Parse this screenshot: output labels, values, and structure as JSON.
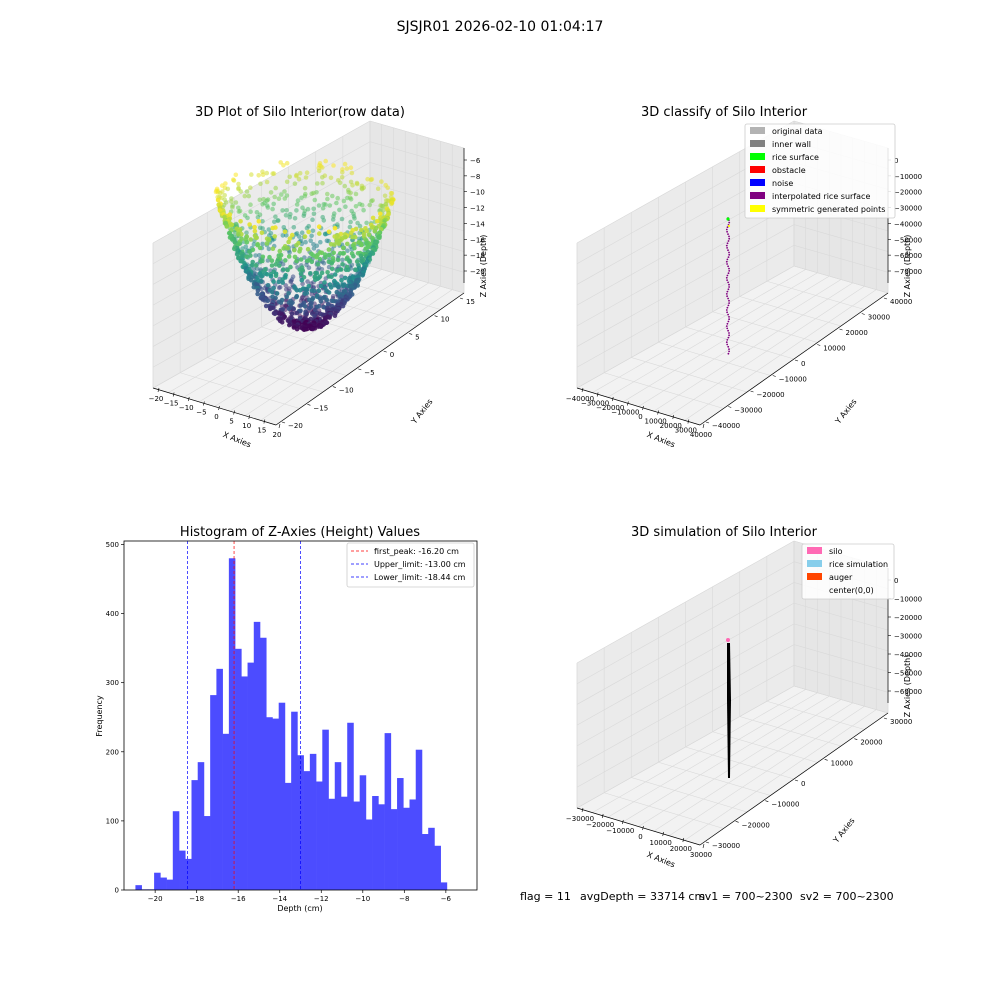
{
  "figure": {
    "suptitle": "SJSJR01 2026-02-10 01:04:17",
    "bottom": {
      "flag": "flag = 11",
      "avg": "avgDepth = 33714 cm",
      "sv1": "sv1 = 700~2300",
      "sv2": "sv2 = 700~2300"
    }
  },
  "colors": {
    "hist_bar": "#4c4cff",
    "first_peak": "#ff0000",
    "limit_lines": "#0000ff",
    "pane": "#f2f2f2",
    "grid": "#d9d9d9"
  },
  "chart_data": [
    {
      "id": "raw3d",
      "type": "scatter",
      "projection": "3d",
      "title": "3D Plot of Silo Interior(row data)",
      "xlabel": "X Axies",
      "ylabel": "Y Axies",
      "zlabel": "Z Axies (Depth)",
      "xlim": [
        -20,
        20
      ],
      "ylim": [
        -20,
        20
      ],
      "zlim": [
        -22,
        -5
      ],
      "xticks": [
        "−20",
        "−15",
        "−10",
        "−5",
        "0",
        "5",
        "10",
        "15",
        "20"
      ],
      "yticks": [
        "−20",
        "−15",
        "−10",
        "−5",
        "0",
        "5",
        "10",
        "15"
      ],
      "zticks": [
        "−6",
        "−8",
        "−10",
        "−12",
        "−14",
        "−16",
        "−18",
        "−20"
      ],
      "colormap": "viridis",
      "description_shape": "bowl"
    },
    {
      "id": "classify3d",
      "type": "scatter",
      "projection": "3d",
      "title": "3D classify of Silo Interior",
      "xlabel": "X Axies",
      "ylabel": "Y Axies",
      "zlabel": "Z Axies (Depth)",
      "xticks": [
        "−40000",
        "−30000",
        "−20000",
        "−10000",
        "0",
        "10000",
        "20000",
        "30000",
        "40000"
      ],
      "yticks": [
        "−40000",
        "−30000",
        "−20000",
        "−10000",
        "0",
        "10000",
        "20000",
        "30000",
        "40000"
      ],
      "zticks": [
        "0",
        "−10000",
        "−20000",
        "−30000",
        "−40000",
        "−50000",
        "−60000",
        "−70000"
      ],
      "legend": [
        {
          "label": "original data",
          "color": "#b3b3b3"
        },
        {
          "label": "inner wall",
          "color": "#808080"
        },
        {
          "label": "rice surface",
          "color": "#00ff00"
        },
        {
          "label": "obstacle",
          "color": "#ff0000"
        },
        {
          "label": "noise",
          "color": "#0000ff"
        },
        {
          "label": "interpolated rice surface",
          "color": "#800080"
        },
        {
          "label": "symmetric generated points",
          "color": "#ffff00"
        }
      ]
    },
    {
      "id": "hist",
      "type": "bar",
      "title": "Histogram of Z-Axies (Height) Values",
      "xlabel": "Depth (cm)",
      "ylabel": "Frequency",
      "xlim": [
        -21.5,
        -4.5
      ],
      "ylim": [
        0,
        505
      ],
      "xticks": [
        -20,
        -18,
        -16,
        -14,
        -12,
        -10,
        -8,
        -6
      ],
      "xtick_labels": [
        "−20",
        "−18",
        "−16",
        "−14",
        "−12",
        "−10",
        "−8",
        "−6"
      ],
      "yticks": [
        0,
        100,
        200,
        300,
        400,
        500
      ],
      "bin_start": -20.95,
      "bin_width": 0.3,
      "values": [
        7,
        1,
        1,
        25,
        18,
        15,
        114,
        57,
        45,
        159,
        185,
        107,
        282,
        320,
        226,
        480,
        349,
        309,
        329,
        388,
        365,
        250,
        248,
        271,
        155,
        258,
        195,
        172,
        197,
        157,
        232,
        132,
        185,
        135,
        242,
        128,
        166,
        102,
        136,
        124,
        227,
        117,
        162,
        119,
        131,
        203,
        81,
        90,
        64,
        11
      ],
      "vlines": [
        {
          "label": "first_peak: -16.20 cm",
          "x": -16.2,
          "color": "#ff0000"
        },
        {
          "label": "Upper_limit: -13.00 cm",
          "x": -13.0,
          "color": "#0000ff"
        },
        {
          "label": "Lower_limit: -18.44 cm",
          "x": -18.44,
          "color": "#0000ff"
        }
      ]
    },
    {
      "id": "sim3d",
      "type": "scatter",
      "projection": "3d",
      "title": "3D simulation of Silo Interior",
      "xlabel": "X Axies",
      "ylabel": "Y Axies",
      "zlabel": "Z Axies (Depth)",
      "xticks": [
        "−30000",
        "−20000",
        "−10000",
        "0",
        "10000",
        "20000",
        "30000"
      ],
      "yticks": [
        "−30000",
        "−20000",
        "−10000",
        "0",
        "10000",
        "20000",
        "30000"
      ],
      "zticks": [
        "0",
        "−10000",
        "−20000",
        "−30000",
        "−40000",
        "−50000",
        "−60000"
      ],
      "legend": [
        {
          "label": "silo",
          "color": "#ff69b4"
        },
        {
          "label": "rice simulation",
          "color": "#87ceeb"
        },
        {
          "label": "auger",
          "color": "#ff4500"
        },
        {
          "label": "center(0,0)",
          "color": "none"
        }
      ]
    }
  ]
}
